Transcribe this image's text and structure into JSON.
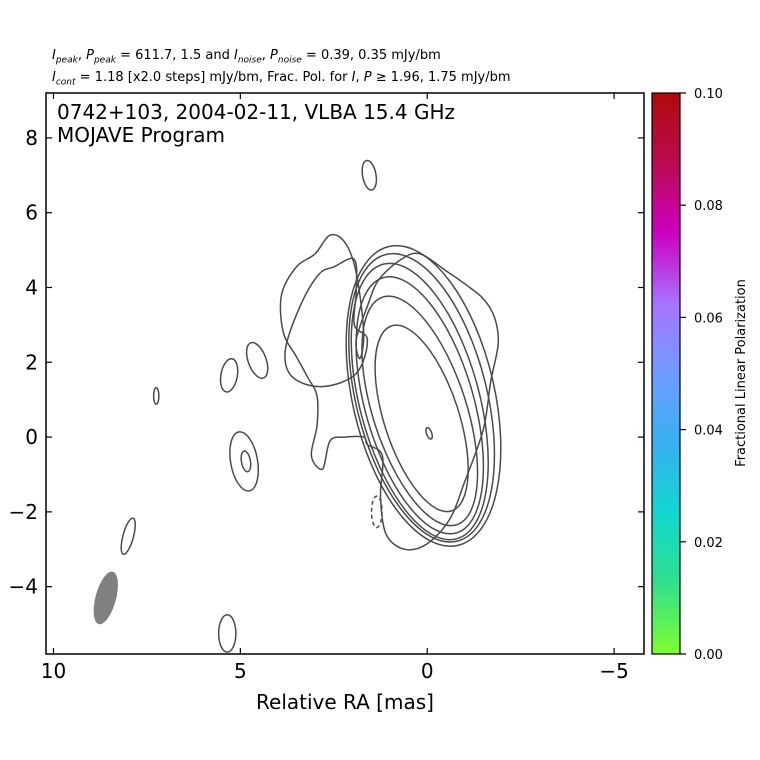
{
  "header": {
    "line1_parts": [
      {
        "t": "I",
        "i": true
      },
      {
        "t": "peak",
        "sub": true
      },
      {
        "t": ", "
      },
      {
        "t": "P",
        "i": true
      },
      {
        "t": "peak",
        "sub": true
      },
      {
        "t": " = 611.7, 1.5 and "
      },
      {
        "t": "I",
        "i": true
      },
      {
        "t": "noise",
        "sub": true
      },
      {
        "t": ", "
      },
      {
        "t": "P",
        "i": true
      },
      {
        "t": "noise",
        "sub": true
      },
      {
        "t": " = 0.39, 0.35 mJy/bm"
      }
    ],
    "line2_parts": [
      {
        "t": "I",
        "i": true
      },
      {
        "t": "cont",
        "sub": true
      },
      {
        "t": " = 1.18 [x2.0 steps] mJy/bm, Frac. Pol. for "
      },
      {
        "t": "I",
        "i": true
      },
      {
        "t": ", "
      },
      {
        "t": "P",
        "i": true
      },
      {
        "t": " ≥ 1.96, 1.75 mJy/bm"
      }
    ]
  },
  "plot": {
    "title_line1": "0742+103, 2004-02-11, VLBA 15.4 GHz",
    "title_line2": "MOJAVE Program",
    "xlabel": "Relative RA [mas]"
  },
  "chart_data": {
    "type": "contour",
    "xlim": [
      10.2,
      -5.8
    ],
    "ylim": [
      -5.8,
      9.2
    ],
    "x_ticks": [
      10,
      5,
      0,
      -5
    ],
    "x_tick_labels": [
      "10",
      "5",
      "0",
      "−5"
    ],
    "y_ticks": [
      8,
      6,
      4,
      2,
      0,
      -2,
      -4
    ],
    "y_tick_labels": [
      "8",
      "6",
      "4",
      "2",
      "0",
      "−2",
      "−4"
    ],
    "contour_color": "#4a4a4a",
    "beam_color": "#808080",
    "beam": {
      "x": 8.6,
      "y": -4.3,
      "major": 1.45,
      "minor": 0.55,
      "pa": 15
    },
    "core_contours": [
      {
        "cx": 0.15,
        "cy": 0.5,
        "rx": 1.0,
        "ry": 2.6,
        "rot": -18
      },
      {
        "cx": 0.2,
        "cy": 0.7,
        "rx": 1.25,
        "ry": 3.2,
        "rot": -18
      },
      {
        "cx": 0.2,
        "cy": 0.85,
        "rx": 1.45,
        "ry": 3.55,
        "rot": -16
      },
      {
        "cx": 0.2,
        "cy": 0.95,
        "rx": 1.6,
        "ry": 3.8,
        "rot": -15
      },
      {
        "cx": 0.15,
        "cy": 1.05,
        "rx": 1.75,
        "ry": 3.95,
        "rot": -14
      },
      {
        "cx": 0.1,
        "cy": 1.1,
        "rx": 1.9,
        "ry": 4.1,
        "rot": -13
      }
    ],
    "outer_contour": [
      [
        1.2,
        -0.5
      ],
      [
        1.25,
        -1.6
      ],
      [
        1.1,
        -2.6
      ],
      [
        0.6,
        -3.0
      ],
      [
        0.0,
        -2.85
      ],
      [
        -0.6,
        -2.2
      ],
      [
        -1.0,
        -1.2
      ],
      [
        -1.5,
        0.2
      ],
      [
        -1.7,
        1.5
      ],
      [
        -1.9,
        2.5
      ],
      [
        -1.8,
        3.2
      ],
      [
        -1.5,
        3.7
      ],
      [
        -1.0,
        4.1
      ],
      [
        -0.5,
        4.45
      ],
      [
        0.2,
        4.9
      ],
      [
        0.7,
        4.75
      ],
      [
        1.3,
        4.2
      ],
      [
        1.6,
        3.5
      ],
      [
        1.9,
        2.6
      ],
      [
        1.8,
        2.1
      ],
      [
        1.7,
        2.8
      ],
      [
        1.9,
        4.4
      ],
      [
        2.2,
        5.2
      ],
      [
        2.6,
        5.4
      ],
      [
        3.0,
        4.9
      ],
      [
        3.5,
        4.55
      ],
      [
        3.9,
        3.8
      ],
      [
        3.85,
        2.8
      ],
      [
        3.5,
        2.15
      ],
      [
        3.2,
        1.6
      ],
      [
        2.95,
        1.1
      ],
      [
        2.95,
        0.3
      ],
      [
        3.1,
        -0.5
      ],
      [
        2.8,
        -0.85
      ],
      [
        2.6,
        -0.1
      ],
      [
        2.2,
        0.0
      ],
      [
        1.7,
        0.0
      ],
      [
        1.6,
        -0.2
      ]
    ],
    "inner_lobe": [
      [
        3.4,
        3.5
      ],
      [
        2.9,
        4.35
      ],
      [
        2.5,
        4.55
      ],
      [
        1.95,
        4.75
      ],
      [
        1.9,
        3.9
      ],
      [
        1.95,
        3.0
      ],
      [
        1.6,
        2.6
      ],
      [
        1.9,
        1.7
      ],
      [
        2.8,
        1.35
      ],
      [
        3.6,
        1.6
      ],
      [
        3.8,
        2.3
      ]
    ],
    "inner_core": {
      "cx": -0.05,
      "cy": 0.1,
      "rx": 0.07,
      "ry": 0.16,
      "rot": -20
    },
    "islands": [
      {
        "cx": 1.55,
        "cy": 7.0,
        "rx": 0.18,
        "ry": 0.4,
        "rot": -10
      },
      {
        "cx": 5.3,
        "cy": 1.65,
        "rx": 0.22,
        "ry": 0.45,
        "rot": 10
      },
      {
        "cx": 4.55,
        "cy": 2.05,
        "rx": 0.24,
        "ry": 0.5,
        "rot": -20
      },
      {
        "cx": 7.25,
        "cy": 1.1,
        "rx": 0.07,
        "ry": 0.22,
        "rot": 0
      },
      {
        "cx": 4.9,
        "cy": -0.65,
        "rx": 0.36,
        "ry": 0.8,
        "rot": -10
      },
      {
        "cx": 4.85,
        "cy": -0.65,
        "rx": 0.12,
        "ry": 0.28,
        "rot": -10
      },
      {
        "cx": 8.0,
        "cy": -2.65,
        "rx": 0.14,
        "ry": 0.5,
        "rot": 15
      },
      {
        "cx": 5.35,
        "cy": -5.25,
        "rx": 0.23,
        "ry": 0.5,
        "rot": 0
      }
    ],
    "dashed_contours": [
      {
        "cx": 1.35,
        "cy": -2.0,
        "rx": 0.14,
        "ry": 0.42,
        "rot": 0
      }
    ],
    "colorbar": {
      "label": "Fractional Linear Polarization",
      "min": 0.0,
      "max": 0.1,
      "ticks": [
        0.0,
        0.02,
        0.04,
        0.06,
        0.08,
        0.1
      ],
      "tick_labels": [
        "0.00",
        "0.02",
        "0.04",
        "0.06",
        "0.08",
        "0.10"
      ],
      "colors": [
        "#80ff30",
        "#30e08a",
        "#10d8d0",
        "#38b0f0",
        "#6f9cff",
        "#a874ff",
        "#cc00c0",
        "#bb0a50",
        "#b00a0a"
      ]
    }
  }
}
